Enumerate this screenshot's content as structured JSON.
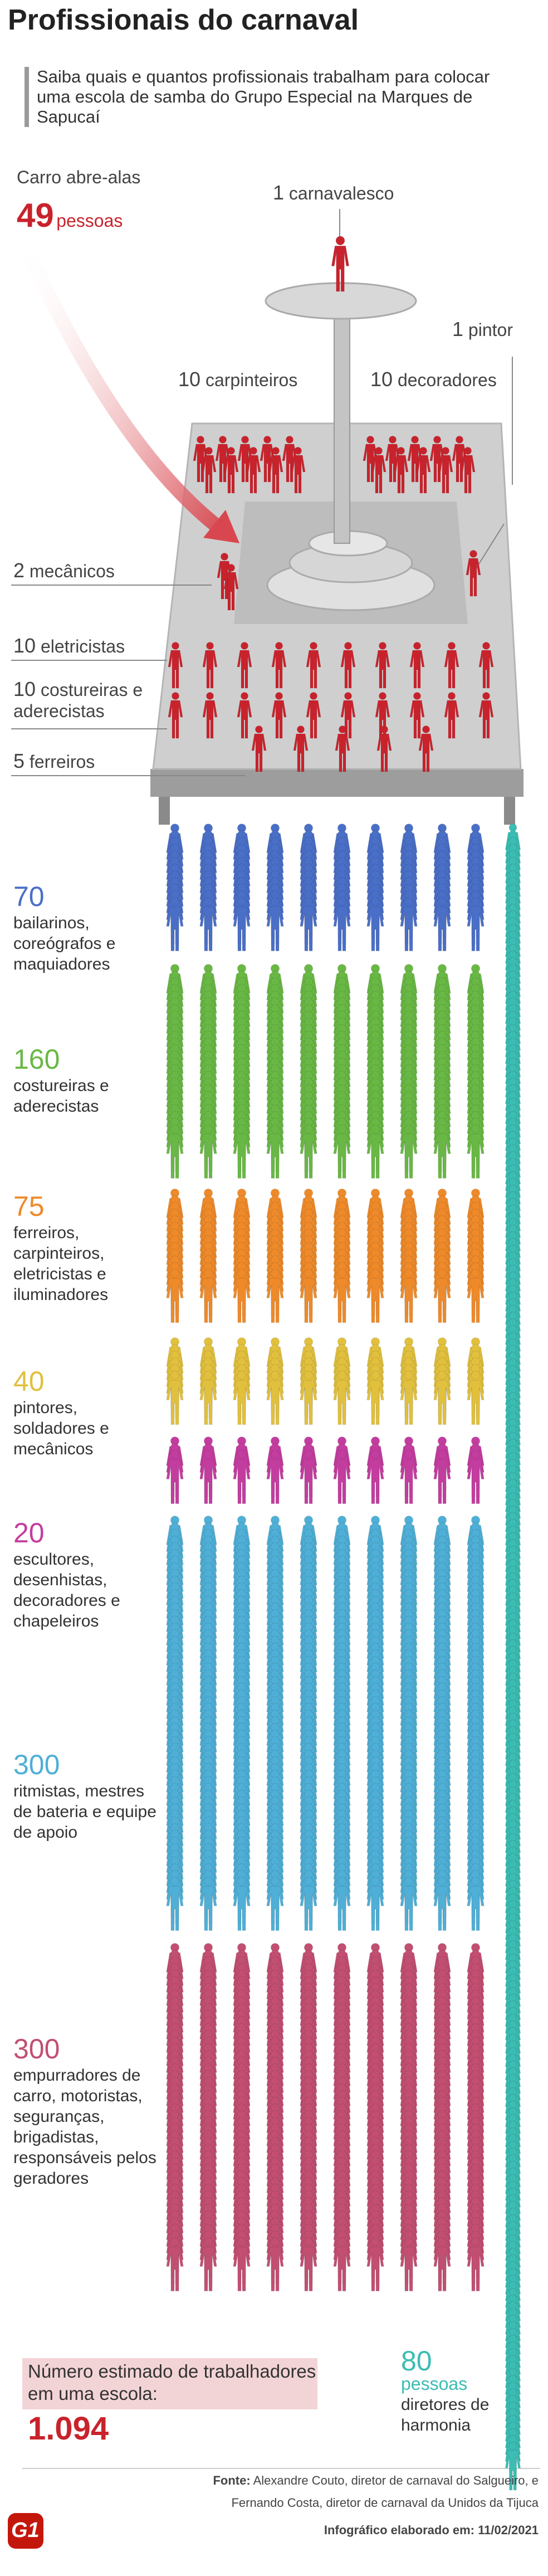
{
  "header": {
    "title": "Profissionais do carnaval",
    "subtitle": "Saiba quais e quantos profissionais trabalham para colocar uma escola de samba do Grupo Especial na Marques de Sapucaí"
  },
  "float": {
    "title": "Carro abre-alas",
    "total": 49,
    "total_unit": "pessoas",
    "roles": [
      {
        "count": 1,
        "name": "carnavalesco"
      },
      {
        "count": 1,
        "name": "pintor"
      },
      {
        "count": 10,
        "name": "carpinteiros"
      },
      {
        "count": 10,
        "name": "decoradores"
      },
      {
        "count": 2,
        "name": "mecânicos"
      },
      {
        "count": 10,
        "name": "eletricistas"
      },
      {
        "count": 10,
        "name": "costureiras e aderecistas"
      },
      {
        "count": 5,
        "name": "ferreiros"
      }
    ]
  },
  "groups": [
    {
      "count": 70,
      "description": "bailarinos, coreógrafos e maquiadores"
    },
    {
      "count": 160,
      "description": "costureiras e aderecistas"
    },
    {
      "count": 75,
      "description": "ferreiros, carpinteiros, eletricistas e iluminadores"
    },
    {
      "count": 40,
      "description": "pintores, soldadores e mecânicos"
    },
    {
      "count": 20,
      "description": "escultores, desenhistas, decoradores e chapeleiros"
    },
    {
      "count": 300,
      "description": "ritmistas, mestres de bateria e equipe de apoio"
    },
    {
      "count": 300,
      "description": "empurradores de carro, motoristas, seguranças, brigadistas, responsáveis pelos geradores"
    }
  ],
  "directors": {
    "count": 80,
    "unit": "pessoas",
    "description": "diretores de harmonia"
  },
  "total": {
    "label": "Número estimado de trabalhadores em uma escola:",
    "value": "1.094"
  },
  "footer": {
    "source_label": "Fonte:",
    "source": "Alexandre Couto, diretor de carnaval do Salgueiro, e Fernando Costa, diretor de carnaval da Unidos da Tijuca",
    "date": "Infográfico elaborado em: 11/02/2021",
    "logo": "G1"
  }
}
